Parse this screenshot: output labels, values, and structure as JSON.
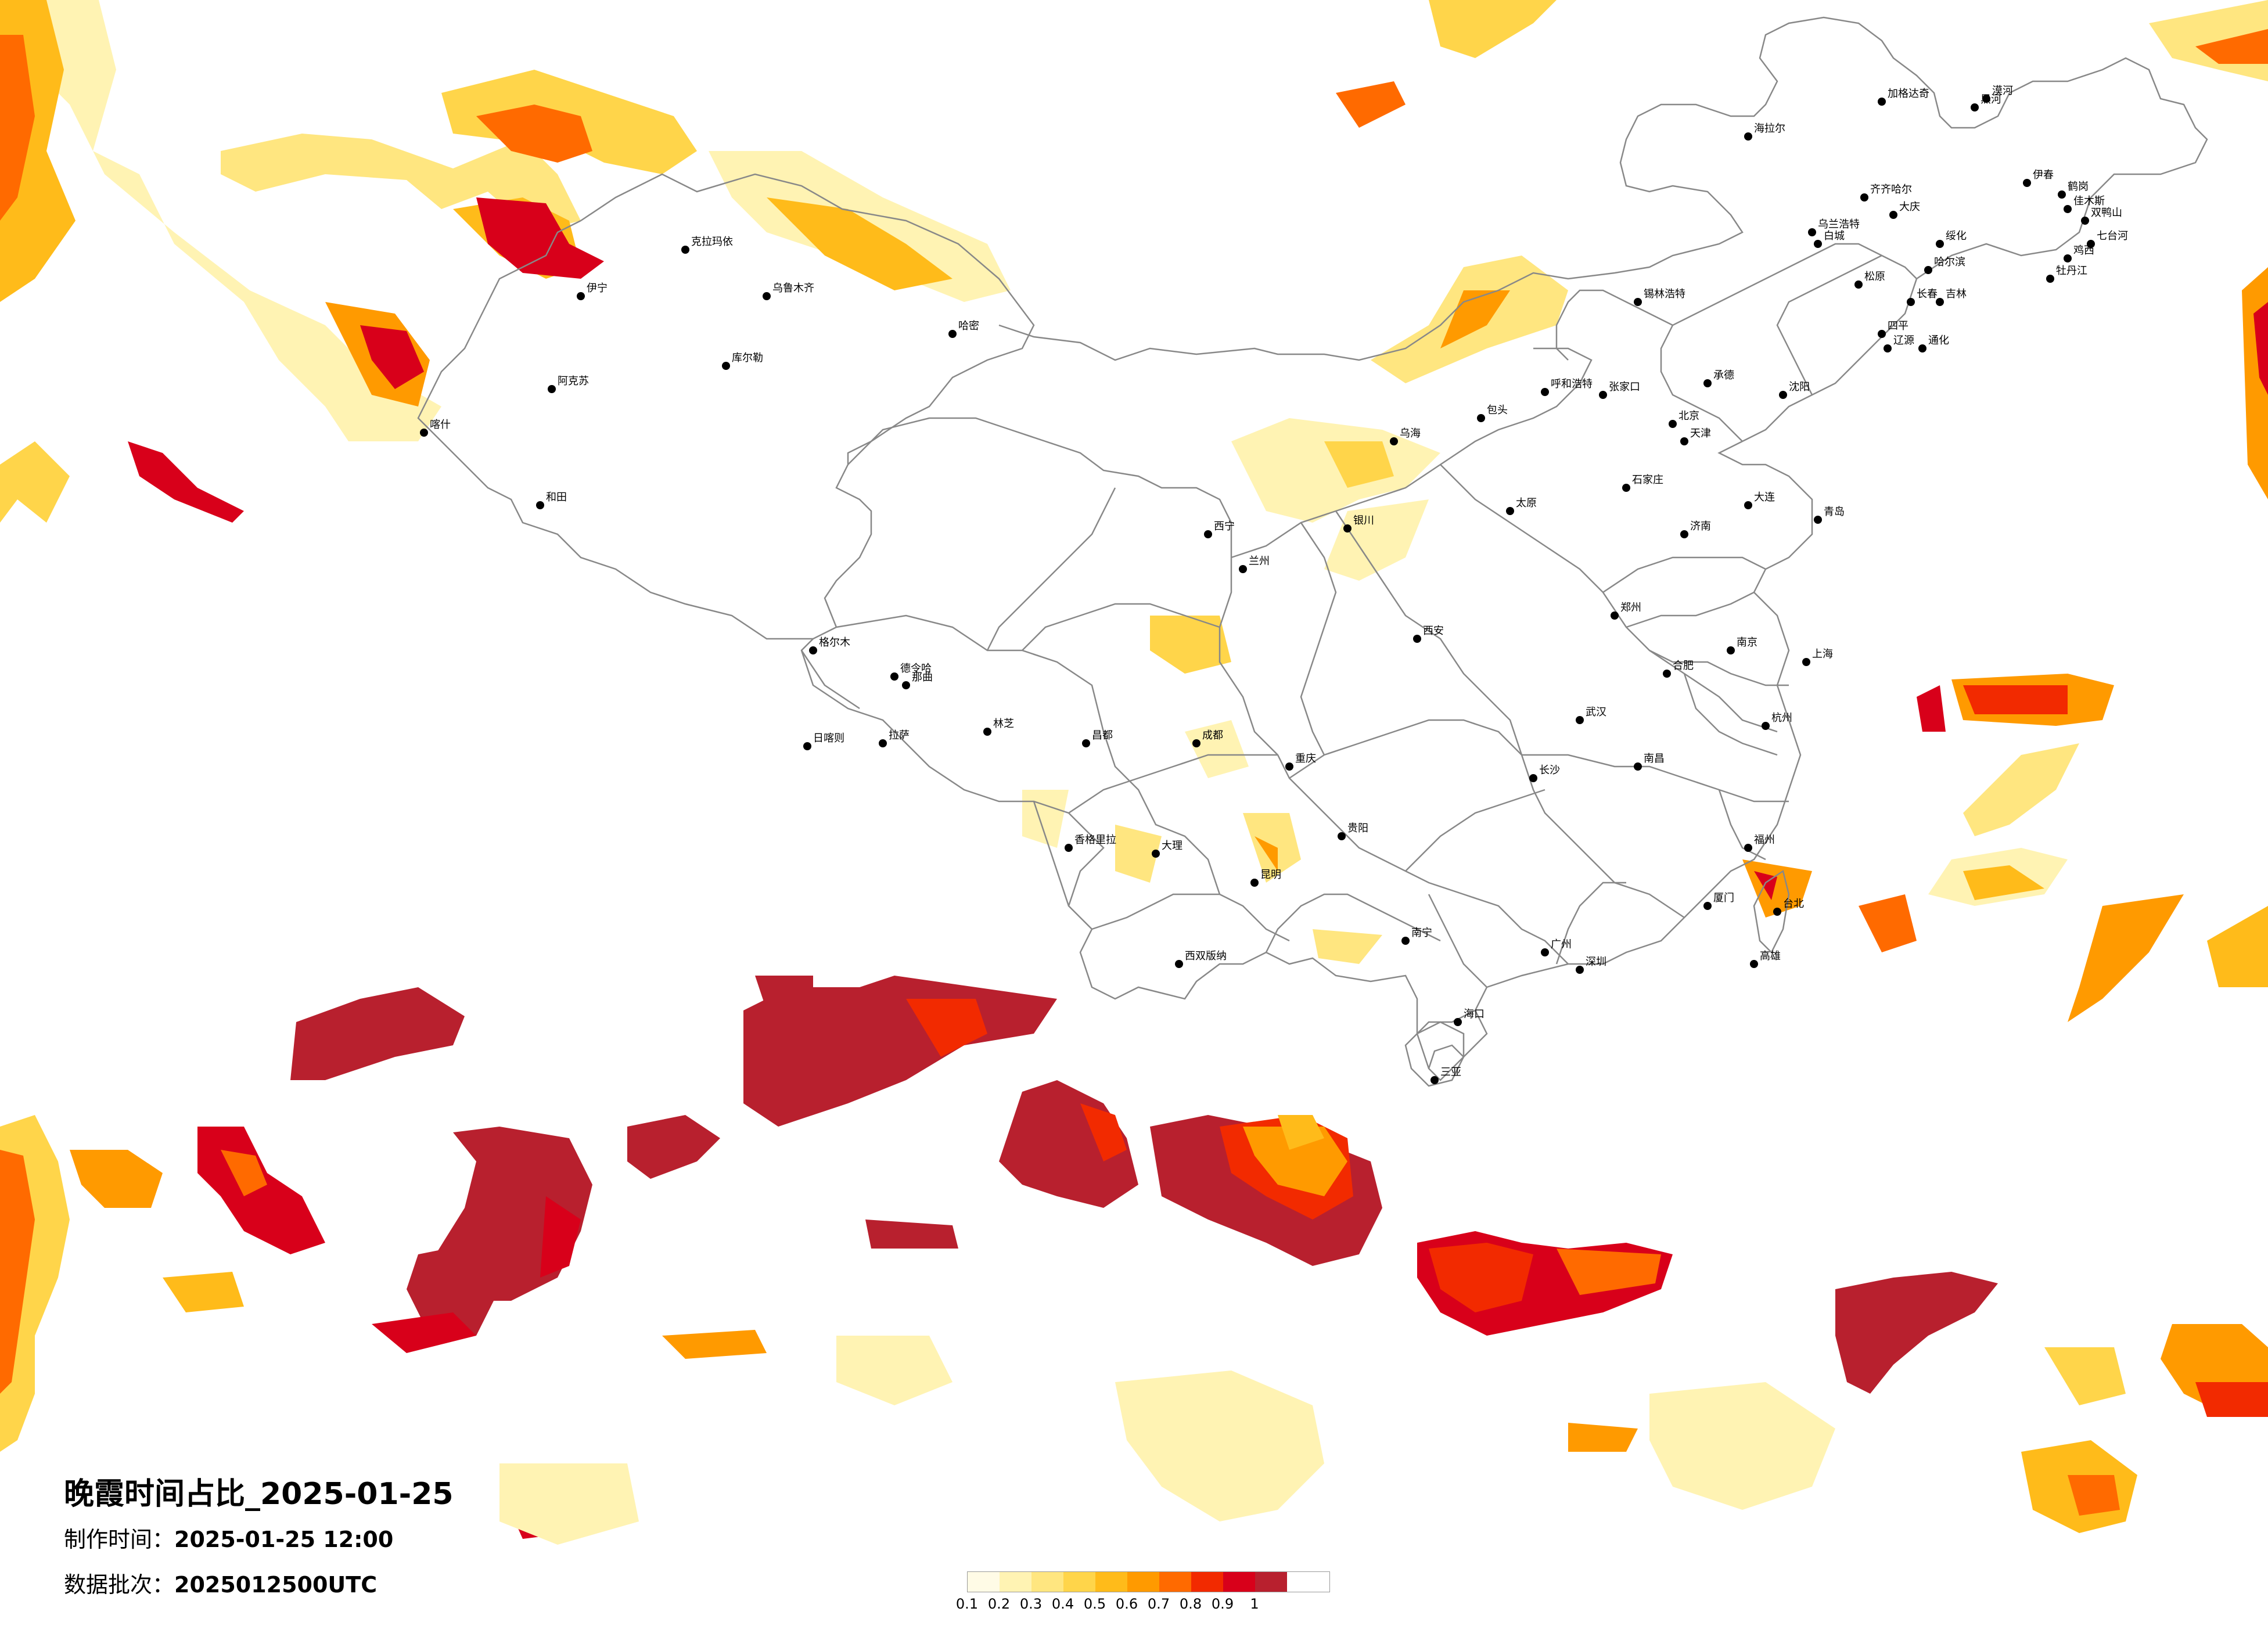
{
  "title": "晚霞时间占比_2025-01-25",
  "made_time": {
    "label": "制作时间：",
    "value": "2025-01-25 12:00"
  },
  "batch": {
    "label": "数据批次：",
    "value": "2025012500UTC"
  },
  "legend": {
    "ticks": [
      "0.1",
      "0.2",
      "0.3",
      "0.4",
      "0.5",
      "0.6",
      "0.7",
      "0.8",
      "0.9",
      "1"
    ],
    "colors": [
      "#fffbe6",
      "#fff3b3",
      "#ffe680",
      "#ffd54a",
      "#ffbb1a",
      "#ff9a00",
      "#ff6a00",
      "#f22a00",
      "#d8001a",
      "#b8202e"
    ]
  },
  "cities": [
    "漠河",
    "加格达奇",
    "海拉尔",
    "黑河",
    "伊春",
    "齐齐哈尔",
    "大庆",
    "鹤岗",
    "佳木斯",
    "双鸭山",
    "七台河",
    "绥化",
    "哈尔滨",
    "鸡西",
    "牡丹江",
    "乌兰浩特",
    "白城",
    "松原",
    "长春",
    "吉林",
    "通化",
    "四平",
    "辽源",
    "锡林浩特",
    "呼和浩特",
    "包头",
    "乌海",
    "张家口",
    "北京",
    "天津",
    "承德",
    "沈阳",
    "大连",
    "石家庄",
    "太原",
    "济南",
    "青岛",
    "郑州",
    "西安",
    "兰州",
    "银川",
    "西宁",
    "武汉",
    "南京",
    "合肥",
    "杭州",
    "上海",
    "南昌",
    "长沙",
    "福州",
    "广州",
    "南宁",
    "海口",
    "三亚",
    "贵阳",
    "昆明",
    "成都",
    "重庆",
    "拉萨",
    "乌鲁木齐",
    "克拉玛依",
    "伊宁",
    "阿克苏",
    "喀什",
    "和田",
    "库尔勒",
    "哈密",
    "德令哈",
    "格尔木",
    "那曲",
    "日喀则",
    "林芝",
    "昌都",
    "香格里拉",
    "大理",
    "西双版纳",
    "台北",
    "高雄",
    "厦门",
    "深圳"
  ]
}
